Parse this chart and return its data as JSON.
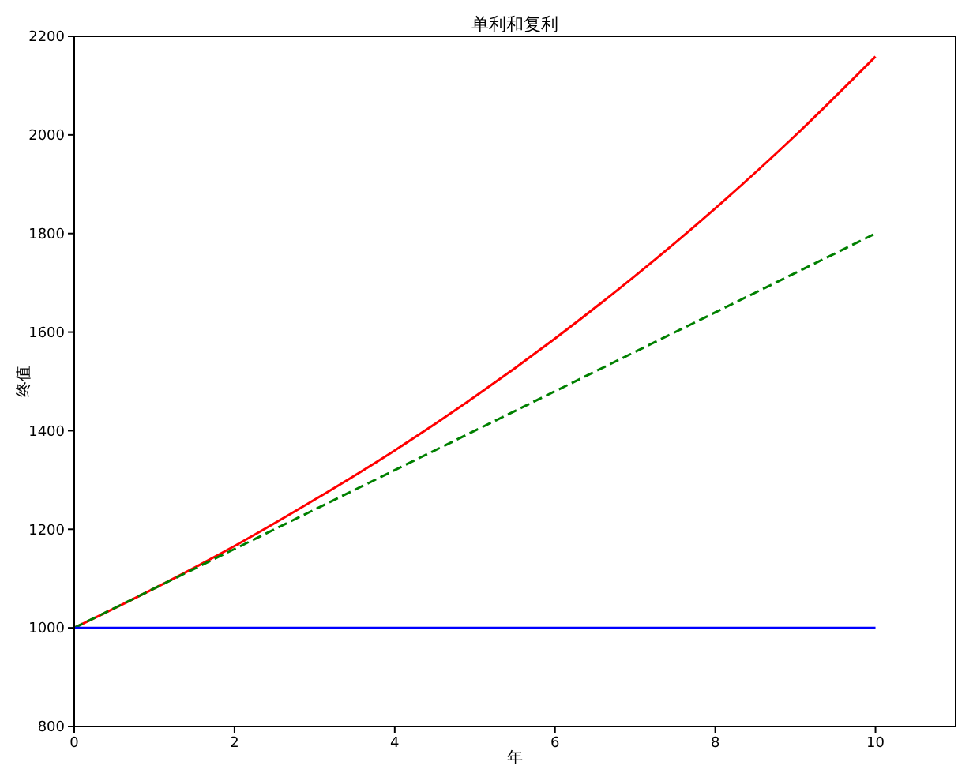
{
  "chart_data": {
    "type": "line",
    "title": "单利和复利",
    "xlabel": "年",
    "ylabel": "终值",
    "x": [
      0,
      1,
      2,
      3,
      4,
      5,
      6,
      7,
      8,
      9,
      10
    ],
    "series": [
      {
        "color": "#ff0000",
        "line_style": "solid",
        "values": [
          1000,
          1080,
          1166,
          1260,
          1360,
          1469,
          1587,
          1714,
          1851,
          1999,
          2159
        ]
      },
      {
        "color": "#008000",
        "line_style": "dashed",
        "values": [
          1000,
          1080,
          1160,
          1240,
          1320,
          1400,
          1480,
          1560,
          1640,
          1720,
          1800
        ]
      },
      {
        "color": "#0000ff",
        "line_style": "solid",
        "values": [
          1000,
          1000,
          1000,
          1000,
          1000,
          1000,
          1000,
          1000,
          1000,
          1000,
          1000
        ]
      }
    ],
    "xlim": [
      0,
      11
    ],
    "ylim": [
      800,
      2200
    ],
    "xticks": [
      0,
      2,
      4,
      6,
      8,
      10
    ],
    "yticks": [
      800,
      1000,
      1200,
      1400,
      1600,
      1800,
      2000,
      2200
    ],
    "grid": false,
    "marker": "none"
  }
}
